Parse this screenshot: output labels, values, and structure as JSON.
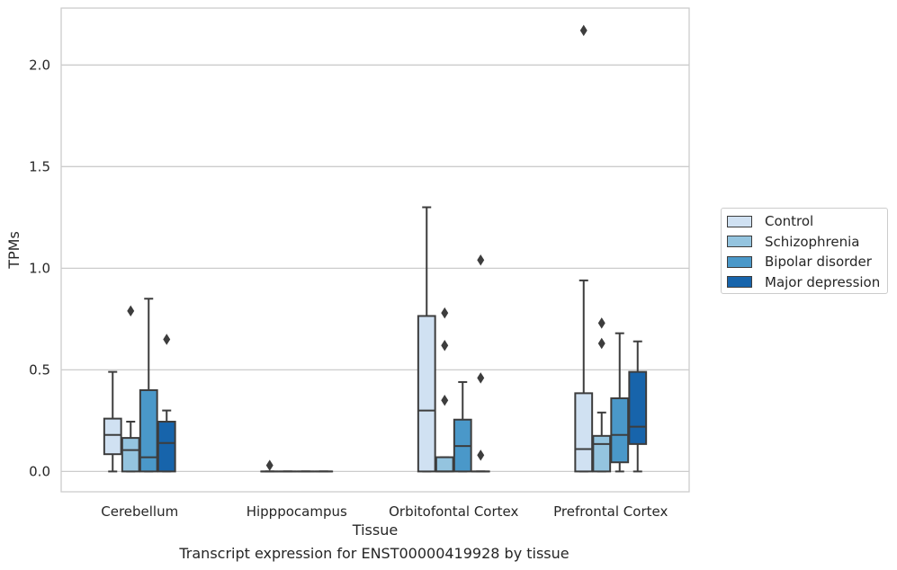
{
  "chart_data": {
    "type": "box",
    "xlabel": "Tissue",
    "ylabel": "TPMs",
    "ylim": [
      -0.1,
      2.28
    ],
    "yticks": [
      "0.0",
      "0.5",
      "1.0",
      "1.5",
      "2.0"
    ],
    "ytick_values": [
      0.0,
      0.5,
      1.0,
      1.5,
      2.0
    ],
    "grid": "horizontal",
    "legend_position": "right",
    "categories": [
      "Cerebellum",
      "Hipppocampus",
      "Orbitofontal Cortex",
      "Prefrontal Cortex"
    ],
    "series": [
      {
        "name": "Control",
        "color": "#d0e1f2",
        "boxes": [
          {
            "whisker_low": 0.0,
            "q1": 0.085,
            "median": 0.18,
            "q3": 0.26,
            "whisker_high": 0.49,
            "outliers": []
          },
          {
            "whisker_low": 0.0,
            "q1": 0.0,
            "median": 0.0,
            "q3": 0.0,
            "whisker_high": 0.0,
            "outliers": [
              0.03
            ]
          },
          {
            "whisker_low": 0.0,
            "q1": 0.0,
            "median": 0.3,
            "q3": 0.765,
            "whisker_high": 1.3,
            "outliers": []
          },
          {
            "whisker_low": 0.0,
            "q1": 0.0,
            "median": 0.11,
            "q3": 0.385,
            "whisker_high": 0.94,
            "outliers": [
              2.17
            ]
          }
        ]
      },
      {
        "name": "Schizophrenia",
        "color": "#94c4df",
        "boxes": [
          {
            "whisker_low": 0.0,
            "q1": 0.0,
            "median": 0.105,
            "q3": 0.165,
            "whisker_high": 0.245,
            "outliers": [
              0.79
            ]
          },
          {
            "whisker_low": 0.0,
            "q1": 0.0,
            "median": 0.0,
            "q3": 0.0,
            "whisker_high": 0.0,
            "outliers": []
          },
          {
            "whisker_low": 0.0,
            "q1": 0.0,
            "median": 0.0,
            "q3": 0.07,
            "whisker_high": 0.07,
            "outliers": [
              0.78,
              0.62,
              0.35
            ]
          },
          {
            "whisker_low": 0.0,
            "q1": 0.0,
            "median": 0.135,
            "q3": 0.175,
            "whisker_high": 0.29,
            "outliers": [
              0.73,
              0.63
            ]
          }
        ]
      },
      {
        "name": "Bipolar disorder",
        "color": "#4a98c9",
        "boxes": [
          {
            "whisker_low": 0.0,
            "q1": 0.0,
            "median": 0.07,
            "q3": 0.4,
            "whisker_high": 0.85,
            "outliers": []
          },
          {
            "whisker_low": 0.0,
            "q1": 0.0,
            "median": 0.0,
            "q3": 0.0,
            "whisker_high": 0.0,
            "outliers": []
          },
          {
            "whisker_low": 0.0,
            "q1": 0.0,
            "median": 0.125,
            "q3": 0.255,
            "whisker_high": 0.44,
            "outliers": []
          },
          {
            "whisker_low": 0.0,
            "q1": 0.045,
            "median": 0.18,
            "q3": 0.36,
            "whisker_high": 0.68,
            "outliers": []
          }
        ]
      },
      {
        "name": "Major depression",
        "color": "#1764ab",
        "boxes": [
          {
            "whisker_low": 0.0,
            "q1": 0.0,
            "median": 0.14,
            "q3": 0.245,
            "whisker_high": 0.3,
            "outliers": [
              0.65
            ]
          },
          {
            "whisker_low": 0.0,
            "q1": 0.0,
            "median": 0.0,
            "q3": 0.0,
            "whisker_high": 0.0,
            "outliers": []
          },
          {
            "whisker_low": 0.0,
            "q1": 0.0,
            "median": 0.0,
            "q3": 0.0,
            "whisker_high": 0.0,
            "outliers": [
              1.04,
              0.46,
              0.08
            ]
          },
          {
            "whisker_low": 0.0,
            "q1": 0.135,
            "median": 0.22,
            "q3": 0.49,
            "whisker_high": 0.64,
            "outliers": []
          }
        ]
      }
    ]
  },
  "caption": "Transcript expression for ENST00000419928 by tissue",
  "legend": {
    "items": [
      {
        "label": "Control",
        "color": "#d0e1f2"
      },
      {
        "label": "Schizophrenia",
        "color": "#94c4df"
      },
      {
        "label": "Bipolar disorder",
        "color": "#4a98c9"
      },
      {
        "label": "Major depression",
        "color": "#1764ab"
      }
    ]
  }
}
